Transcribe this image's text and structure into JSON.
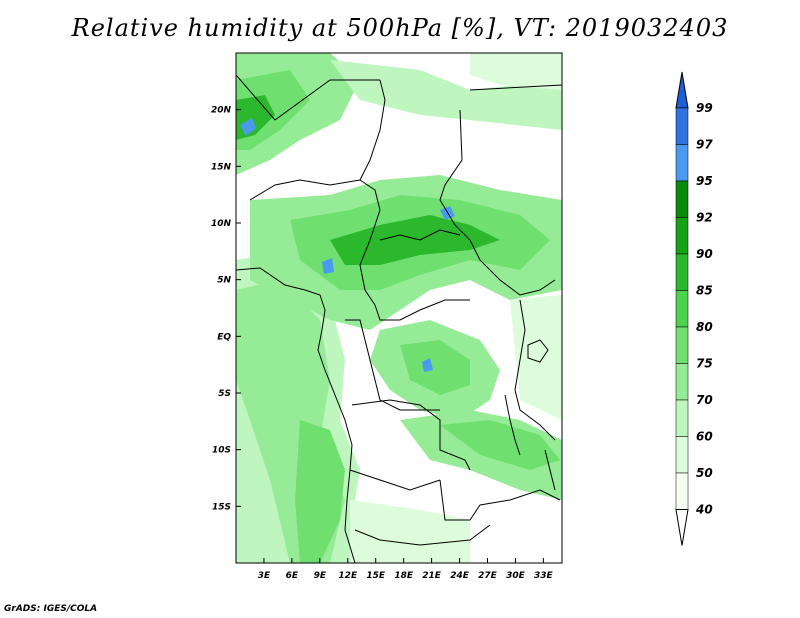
{
  "title": "Relative humidity at 500hPa [%], VT: 2019032403",
  "credit": "GrADS: IGES/COLA",
  "map": {
    "lon_range": [
      0,
      35
    ],
    "lat_range": [
      -20,
      25
    ],
    "lon_ticks": [
      "3E",
      "6E",
      "9E",
      "12E",
      "15E",
      "18E",
      "21E",
      "24E",
      "27E",
      "30E",
      "33E"
    ],
    "lon_tick_values": [
      3,
      6,
      9,
      12,
      15,
      18,
      21,
      24,
      27,
      30,
      33
    ],
    "lat_ticks": [
      "20N",
      "15N",
      "10N",
      "5N",
      "EQ",
      "5S",
      "10S",
      "15S"
    ],
    "lat_tick_values": [
      20,
      15,
      10,
      5,
      0,
      -5,
      -10,
      -15
    ]
  },
  "colorbar": {
    "labels": [
      "99",
      "97",
      "95",
      "92",
      "90",
      "85",
      "80",
      "75",
      "70",
      "60",
      "50",
      "40"
    ],
    "colors": [
      "#1f5fd6",
      "#2f73e0",
      "#4a9af0",
      "#0a8a0a",
      "#16a216",
      "#2cb82c",
      "#4cd24c",
      "#6fe06f",
      "#96ec96",
      "#bff5bf",
      "#dcfcdc",
      "#f2fff2"
    ]
  },
  "colors": {
    "coast_border": "#000000",
    "background": "#ffffff"
  }
}
